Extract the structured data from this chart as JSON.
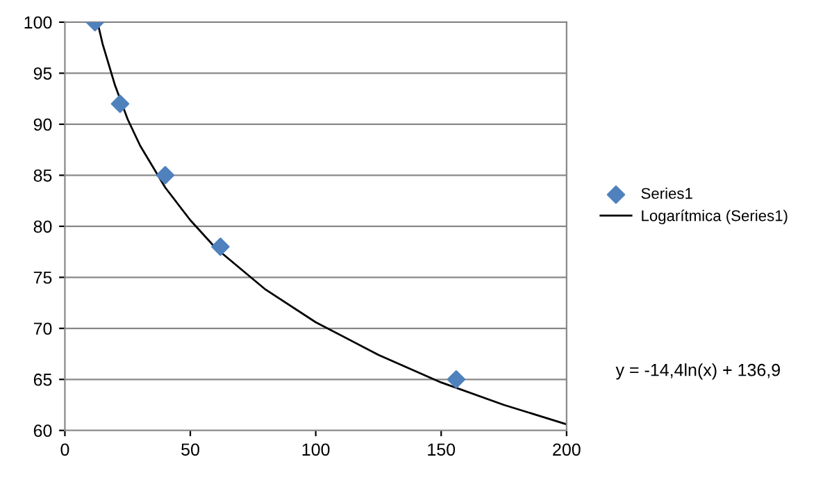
{
  "chart_data": {
    "type": "scatter",
    "series": [
      {
        "name": "Series1",
        "marker": "diamond",
        "color": "#4f81bd",
        "x": [
          12,
          22,
          40,
          62,
          156
        ],
        "values": [
          100,
          92,
          85,
          78,
          65
        ]
      },
      {
        "name": "Logarítmica (Series1)",
        "type": "line",
        "color": "#000000",
        "x": [
          13,
          15,
          20,
          25,
          30,
          40,
          50,
          60,
          80,
          100,
          125,
          150,
          175,
          200
        ],
        "values": [
          100.0,
          97.9,
          93.8,
          90.5,
          87.9,
          83.8,
          80.6,
          77.9,
          73.8,
          70.6,
          67.4,
          64.7,
          62.5,
          60.6
        ]
      }
    ],
    "xlim": [
      0,
      200
    ],
    "xticks": [
      0,
      50,
      100,
      150,
      200
    ],
    "ylim": [
      60,
      100
    ],
    "yticks": [
      60,
      65,
      70,
      75,
      80,
      85,
      90,
      95,
      100
    ],
    "grid": "y",
    "legend": "right",
    "line_style": "solid",
    "annotations": [
      "y = -14,4ln(x) + 136,9"
    ]
  }
}
